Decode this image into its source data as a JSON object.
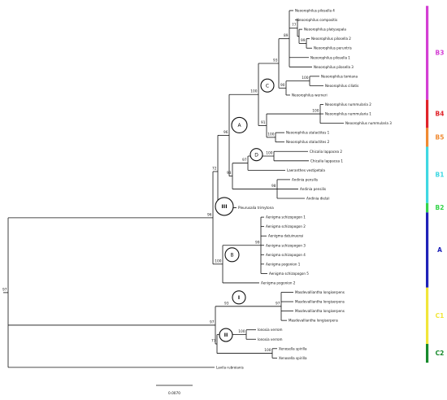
{
  "tree": {
    "taxa": [
      "Neoorophilus pilosella 4",
      "Neoorophilus compositis",
      "Neoorophilus platysepala",
      "Neoorophilus pilosella 2",
      "Neoorophilus peruntris",
      "Neoorophilus pilosella 1",
      "Neoorophilus pilosella 3",
      "Neoorophilus tomiana",
      "Neoorophilus ciliatis",
      "Neoorophilus werneri",
      "Neoorophilus nummularia 2",
      "Neoorophilus nummularia 1",
      "Neoorophilus nummularia 3",
      "Neoorophilus stalactites 1",
      "Neoorophilus stalactites 2",
      "Chicalia lappacea 2",
      "Chicalia lappacea 1",
      "Laeranthes vestipetala",
      "Andinia pensilis",
      "Andinia pensilis",
      "Andinia dielsii",
      "Pleurusalia trimytona",
      "Aenigma schizopogon 1",
      "Aenigma schizopogon 2",
      "Aenigma datuinuensi",
      "Aenigma schizopogon 3",
      "Aenigma schizopogon 4",
      "Aenigma pogonion 1",
      "Aenigma schizopogon 5",
      "Aenigma pogonion 2",
      "Masdevalliantha longiserpens",
      "Masdevalliantha longiserpens",
      "Masdevalliantha longiserpens",
      "Masdevalliantha longiserpens",
      "Ionosia verrom",
      "Ionosia verrom",
      "Xenosella spirilla",
      "Xenosella spirilla",
      "Lavila rubroianis"
    ],
    "support_values": [
      "77",
      "99",
      "89",
      "93",
      "100",
      "90",
      "100",
      "100",
      "91",
      "100",
      "97",
      "100",
      "93",
      "77",
      "98",
      "72",
      "96",
      "99",
      "100",
      "97",
      "97",
      "100",
      "93",
      "100",
      "77",
      "100"
    ],
    "node_labels": [
      "A",
      "B",
      "C",
      "D",
      "I",
      "II",
      "III"
    ],
    "scale_bar": "0.0070"
  },
  "clade_bar": {
    "clades": [
      {
        "label": "B3",
        "color": "#d43fd4"
      },
      {
        "label": "B4",
        "color": "#e0232a"
      },
      {
        "label": "B5",
        "color": "#f08a32"
      },
      {
        "label": "B1",
        "color": "#3fd8e2"
      },
      {
        "label": "B2",
        "color": "#35d44a"
      },
      {
        "label": "A",
        "color": "#1f22b8"
      },
      {
        "label": "C1",
        "color": "#f2e63a"
      },
      {
        "label": "C2",
        "color": "#178a2c"
      }
    ]
  }
}
